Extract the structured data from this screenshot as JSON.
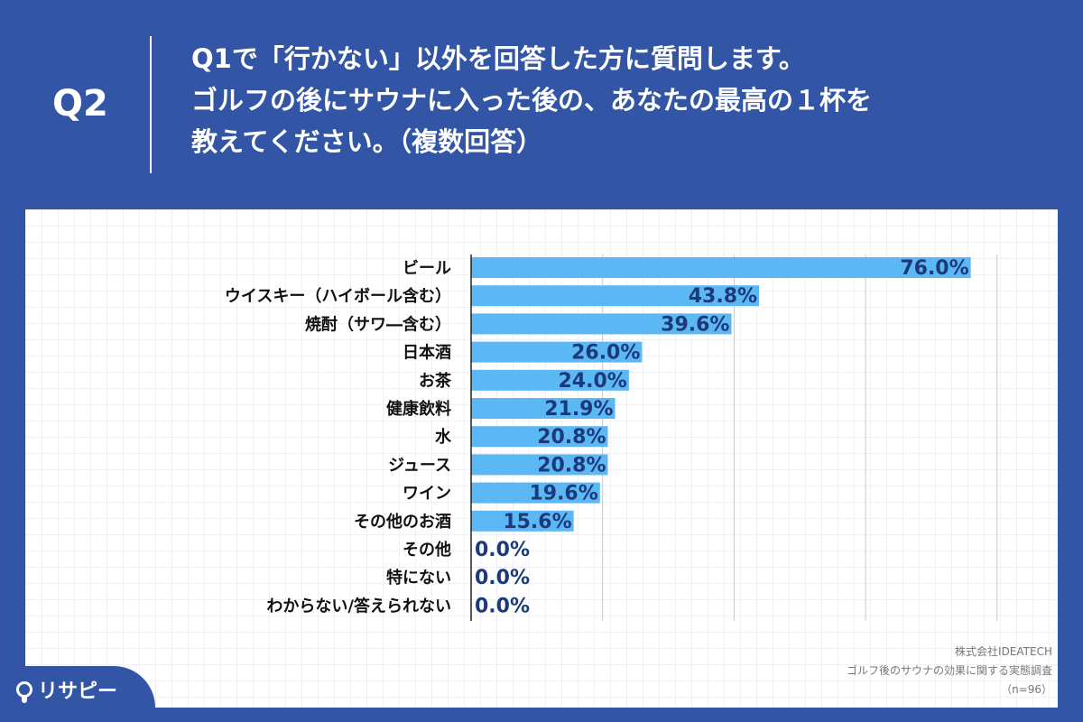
{
  "header": {
    "question_number": "Q2",
    "question_lines": [
      "Q1で「行かない」以外を回答した方に質問します。",
      "ゴルフの後にサウナに入った後の、あなたの最高の１杯を",
      "教えてください。（複数回答）"
    ]
  },
  "source": {
    "company": "株式会社IDEATECH",
    "survey": "ゴルフ後のサウナの効果に関する実態調査",
    "sample": "（n=96）"
  },
  "logo": {
    "text": "リサピー",
    "icon": "pin-icon"
  },
  "chart_data": {
    "type": "bar",
    "orientation": "horizontal",
    "categories": [
      "ビール",
      "ウイスキー（ハイボール含む）",
      "焼酎（サワ―含む）",
      "日本酒",
      "お茶",
      "健康飲料",
      "水",
      "ジュース",
      "ワイン",
      "その他のお酒",
      "その他",
      "特にない",
      "わからない/答えられない"
    ],
    "values": [
      76.0,
      43.8,
      39.6,
      26.0,
      24.0,
      21.9,
      20.8,
      20.8,
      19.6,
      15.6,
      0.0,
      0.0,
      0.0
    ],
    "value_labels": [
      "76.0%",
      "43.8%",
      "39.6%",
      "26.0%",
      "24.0%",
      "21.9%",
      "20.8%",
      "20.8%",
      "19.6%",
      "15.6%",
      "0.0%",
      "0.0%",
      "0.0%"
    ],
    "xlim": [
      0,
      80
    ],
    "grid": true,
    "colors": {
      "bar": "#5bb8f5",
      "value_label": "#1c3a7a",
      "gridline": "#c8c8c8",
      "axis": "#222222"
    }
  }
}
